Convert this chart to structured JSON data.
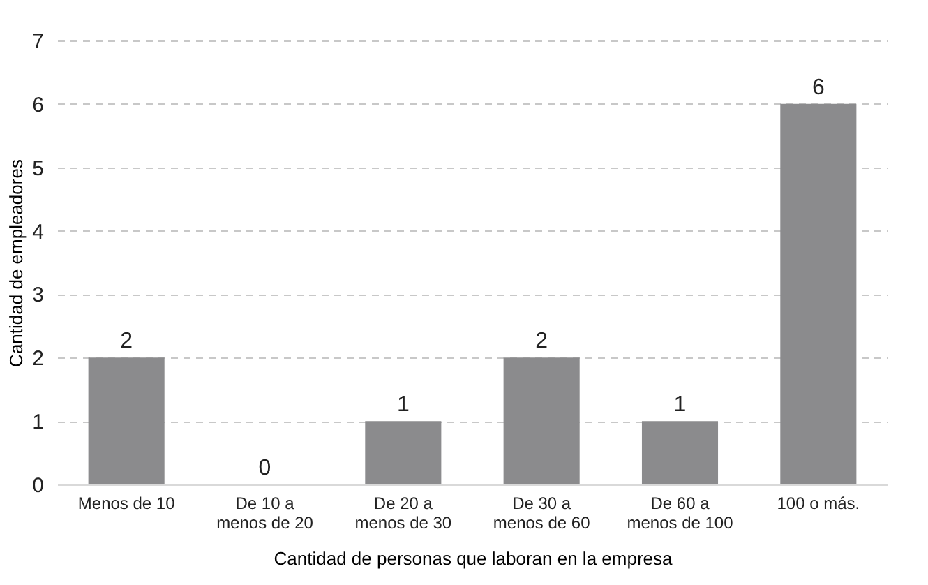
{
  "chart_data": {
    "type": "bar",
    "xlabel": "Cantidad de personas que laboran en la empresa",
    "ylabel": "Cantidad de empleadores",
    "categories": [
      "Menos de 10",
      "De 10 a\nmenos de 20",
      "De 20 a\nmenos de 30",
      "De 30 a\nmenos de 60",
      "De 60 a\nmenos de 100",
      "100 o más."
    ],
    "values": [
      2,
      0,
      1,
      2,
      1,
      6
    ],
    "color": "#8b8b8d",
    "ylim": [
      0,
      7
    ],
    "yticks": [
      0,
      1,
      2,
      3,
      4,
      5,
      6,
      7
    ],
    "grid": "y",
    "data_labels": true
  }
}
